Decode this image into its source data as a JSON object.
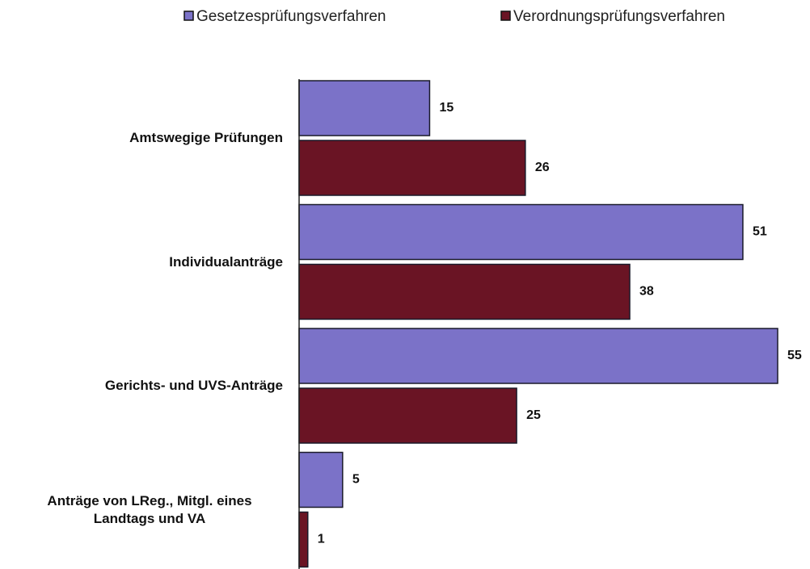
{
  "chart_data": {
    "type": "bar",
    "orientation": "horizontal",
    "categories": [
      "Amtswegige Prüfungen",
      "Individualanträge",
      "Gerichts- und UVS-Anträge",
      "Anträge von LReg., Mitgl. eines Landtags und VA"
    ],
    "series": [
      {
        "name": "Gesetzesprüfungsverfahren",
        "color": "#7b72c8",
        "values": [
          15,
          51,
          55,
          5
        ]
      },
      {
        "name": "Verordnungsprüfungsverfahren",
        "color": "#6a1424",
        "values": [
          26,
          38,
          25,
          1
        ]
      }
    ],
    "legend": "top"
  }
}
